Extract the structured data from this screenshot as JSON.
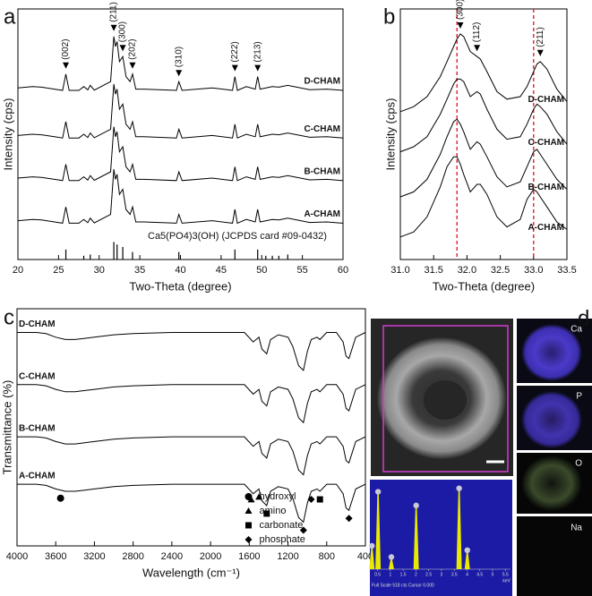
{
  "chart_data": [
    {
      "type": "line",
      "panel_label": "a",
      "xlabel": "Two-Theta (degree)",
      "ylabel": "Intensity (cps)",
      "xlim": [
        20,
        60
      ],
      "xticks": [
        20,
        25,
        30,
        35,
        40,
        45,
        50,
        55,
        60
      ],
      "ylim": [
        0,
        100
      ],
      "x": [
        20,
        21.8,
        22.9,
        24.5,
        25.5,
        25.9,
        26.3,
        27.5,
        28.1,
        28.6,
        28.9,
        29.4,
        31.4,
        31.8,
        32.0,
        32.2,
        32.5,
        32.9,
        33.3,
        33.8,
        34.1,
        34.5,
        35.5,
        39.5,
        39.8,
        40.2,
        43.9,
        46.4,
        46.7,
        47.0,
        48.1,
        49.2,
        49.5,
        49.8,
        51.3,
        52.1,
        53.2,
        55.9,
        58,
        60
      ],
      "series": [
        {
          "name": "A-CHAM",
          "color": "#000000",
          "values": [
            15.5,
            16,
            15.8,
            15,
            14.5,
            21,
            14.5,
            14.5,
            16,
            14.7,
            16.5,
            14.6,
            18,
            36,
            32,
            34,
            26,
            28,
            20,
            18,
            21,
            15,
            15,
            14.5,
            18,
            14.5,
            15.5,
            14.5,
            20,
            14.5,
            16,
            15,
            20,
            15,
            16,
            15.8,
            16.5,
            14.8,
            15,
            14.5
          ]
        },
        {
          "name": "B-CHAM",
          "color": "#000000",
          "values": [
            32.5,
            33,
            32.8,
            32,
            31.5,
            38,
            31.5,
            31.5,
            33,
            31.7,
            33.5,
            31.6,
            35,
            53,
            49,
            51,
            43,
            45,
            37,
            35,
            38,
            32,
            32,
            31.5,
            35,
            31.5,
            32.5,
            31.5,
            37,
            31.5,
            33,
            32,
            37,
            32,
            33,
            32.8,
            33.5,
            31.8,
            32,
            31.5
          ]
        },
        {
          "name": "C-CHAM",
          "color": "#000000",
          "values": [
            49.5,
            50,
            49.8,
            49,
            48.5,
            55,
            48.5,
            48.5,
            50,
            48.7,
            50.5,
            48.6,
            52,
            70,
            66,
            68,
            60,
            62,
            54,
            52,
            55,
            49,
            49,
            48.5,
            52,
            48.5,
            49.5,
            48.5,
            54,
            48.5,
            50,
            49,
            54,
            49,
            50,
            49.8,
            50.5,
            48.8,
            49,
            48.5
          ]
        },
        {
          "name": "D-CHAM",
          "color": "#000000",
          "values": [
            68.5,
            69,
            68.8,
            68,
            67.5,
            74,
            67.5,
            67.5,
            69,
            67.7,
            69.5,
            67.6,
            71,
            89,
            85,
            87,
            79,
            81,
            73,
            71,
            74,
            68,
            68,
            67.5,
            71,
            67.5,
            68.5,
            67.5,
            73,
            67.5,
            69,
            68,
            73,
            68,
            69,
            68.8,
            69.5,
            67.8,
            68,
            67.5
          ]
        }
      ],
      "reference": {
        "label": "Ca5(PO4)3(OH) (JCPDS card #09-0432)",
        "x": [
          25.9,
          28.1,
          28.9,
          31.8,
          32.2,
          32.9,
          34.1,
          39.8,
          46.7,
          49.5,
          50.5,
          51.3,
          52.1,
          53.2
        ],
        "values": [
          4,
          1.5,
          2,
          7,
          6,
          5,
          3,
          3,
          4,
          4,
          1.5,
          1.5,
          1.5,
          2
        ]
      },
      "annotations": [
        {
          "text": "(002)",
          "x": 25.9
        },
        {
          "text": "(211)",
          "x": 31.8
        },
        {
          "text": "(300)",
          "x": 32.9
        },
        {
          "text": "(202)",
          "x": 34.1
        },
        {
          "text": "(310)",
          "x": 39.8
        },
        {
          "text": "(222)",
          "x": 46.7
        },
        {
          "text": "(213)",
          "x": 49.5
        }
      ]
    },
    {
      "type": "line",
      "panel_label": "b",
      "xlabel": "Two-Theta (degree)",
      "ylabel": "Intensity (cps)",
      "xlim": [
        31,
        33.5
      ],
      "xticks": [
        {
          "value": 31,
          "label": "31.0"
        },
        31.5,
        {
          "value": 32,
          "label": "32.0"
        },
        32.5,
        {
          "value": 33,
          "label": "33.0"
        },
        33.5
      ],
      "ylim": [
        0,
        100
      ],
      "x": [
        31.0,
        31.2,
        31.4,
        31.6,
        31.7,
        31.8,
        31.85,
        31.9,
        31.95,
        32.05,
        32.15,
        32.2,
        32.3,
        32.45,
        32.6,
        32.8,
        32.9,
        33.0,
        33.05,
        33.1,
        33.2,
        33.35,
        33.5
      ],
      "series": [
        {
          "name": "A-CHAM",
          "color": "#000000",
          "values": [
            9,
            11,
            17,
            29,
            37,
            41,
            41,
            38,
            34,
            27,
            30,
            30,
            26,
            17,
            13,
            16,
            24,
            28,
            27,
            25,
            21,
            15,
            12
          ]
        },
        {
          "name": "B-CHAM",
          "color": "#000000",
          "values": [
            25,
            27,
            32,
            42,
            49,
            55,
            56,
            54,
            51,
            44,
            47,
            46,
            41,
            33,
            29,
            31,
            37,
            43,
            44,
            42,
            38,
            32,
            28
          ]
        },
        {
          "name": "C-CHAM",
          "color": "#000000",
          "values": [
            43,
            45,
            49,
            58,
            64,
            70,
            72,
            72,
            71,
            65,
            67,
            66,
            60,
            52,
            48,
            49,
            54,
            60,
            62,
            61,
            58,
            51,
            46
          ]
        },
        {
          "name": "D-CHAM",
          "color": "#000000",
          "values": [
            59,
            61,
            65,
            73,
            79,
            85,
            88,
            90,
            89,
            83,
            81,
            80,
            75,
            67,
            64,
            65,
            69,
            75,
            78,
            79,
            76,
            68,
            63
          ]
        }
      ],
      "reference_lines": [
        31.85,
        33.0
      ],
      "reference_line_color": "#e0202a",
      "annotations": [
        {
          "text": "(300)",
          "x": 31.9
        },
        {
          "text": "(112)",
          "x": 32.15
        },
        {
          "text": "(211)",
          "x": 33.1
        }
      ]
    },
    {
      "type": "line",
      "panel_label": "c",
      "xlabel": "Wavelength (cm⁻¹)",
      "ylabel": "Transmittance (%)",
      "xlim": [
        4000,
        400
      ],
      "xticks": [
        4000,
        3600,
        3200,
        2800,
        2400,
        2000,
        1600,
        1200,
        800,
        400
      ],
      "ylim": [
        0,
        100
      ],
      "x": [
        4000,
        3800,
        3700,
        3600,
        3500,
        3400,
        3300,
        3200,
        3000,
        2800,
        2400,
        2000,
        1800,
        1650,
        1560,
        1500,
        1470,
        1420,
        1380,
        1300,
        1200,
        1150,
        1090,
        1040,
        1000,
        960,
        900,
        870,
        800,
        700,
        630,
        600,
        570,
        500,
        400
      ],
      "series": [
        {
          "name": "A-CHAM",
          "color": "#000000",
          "values": [
            26,
            26,
            25.5,
            24,
            23,
            23,
            23.5,
            24,
            25,
            25.5,
            26,
            26,
            26,
            26,
            22,
            24,
            19,
            17,
            23,
            25,
            24,
            20,
            12,
            10,
            18,
            23,
            24,
            23,
            26,
            26,
            22,
            16,
            15,
            24,
            26
          ]
        },
        {
          "name": "B-CHAM",
          "color": "#000000",
          "values": [
            46,
            46,
            45.5,
            44,
            43,
            43,
            43.5,
            44,
            45,
            45.5,
            46,
            46,
            46,
            46,
            42,
            44,
            39,
            37,
            43,
            45,
            44,
            40,
            32,
            30,
            38,
            43,
            44,
            43,
            46,
            46,
            42,
            36,
            35,
            44,
            46
          ]
        },
        {
          "name": "C-CHAM",
          "color": "#000000",
          "values": [
            68,
            68,
            67.5,
            66,
            65,
            65,
            65.5,
            66,
            67,
            67.5,
            68,
            68,
            68,
            68,
            64,
            66,
            61,
            59,
            65,
            67,
            66,
            62,
            54,
            52,
            60,
            65,
            66,
            65,
            68,
            68,
            64,
            58,
            57,
            66,
            68
          ]
        },
        {
          "name": "D-CHAM",
          "color": "#000000",
          "values": [
            90,
            90,
            89.5,
            88,
            87,
            87,
            87.5,
            88,
            89,
            89.5,
            90,
            90,
            90,
            90,
            86,
            88,
            83,
            81,
            87,
            89,
            88,
            84,
            76,
            74,
            82,
            87,
            88,
            87,
            90,
            90,
            86,
            80,
            79,
            88,
            90
          ]
        }
      ],
      "legend": "lower center",
      "markers": [
        {
          "name": "hydroxyl",
          "shape": "circle",
          "x": [
            3550
          ]
        },
        {
          "name": "amino",
          "shape": "triangle",
          "x": [
            1580,
            1500
          ]
        },
        {
          "name": "carbonate",
          "shape": "square",
          "x": [
            1420,
            870
          ]
        },
        {
          "name": "phosphate",
          "shape": "diamond",
          "x": [
            1040,
            960,
            570
          ]
        }
      ]
    },
    {
      "type": "bar",
      "panel_label": "d",
      "maps": [
        "Ca",
        "P",
        "O",
        "Na"
      ],
      "xlim": [
        0.2,
        5.7
      ],
      "ylim": [
        0,
        100
      ],
      "xticks": [
        0.5,
        1,
        1.5,
        2,
        2.5,
        3,
        3.5,
        4,
        4.5,
        5,
        5.5
      ],
      "xlabel": "keV",
      "footer": "Full Scale 518 cts Cursor 0.000",
      "x": [
        0.28,
        0.52,
        1.04,
        2.01,
        3.69,
        4.01
      ],
      "values": [
        25,
        88,
        12,
        72,
        92,
        20
      ],
      "color": "#e8e800",
      "background": "#1b1ba6"
    }
  ]
}
